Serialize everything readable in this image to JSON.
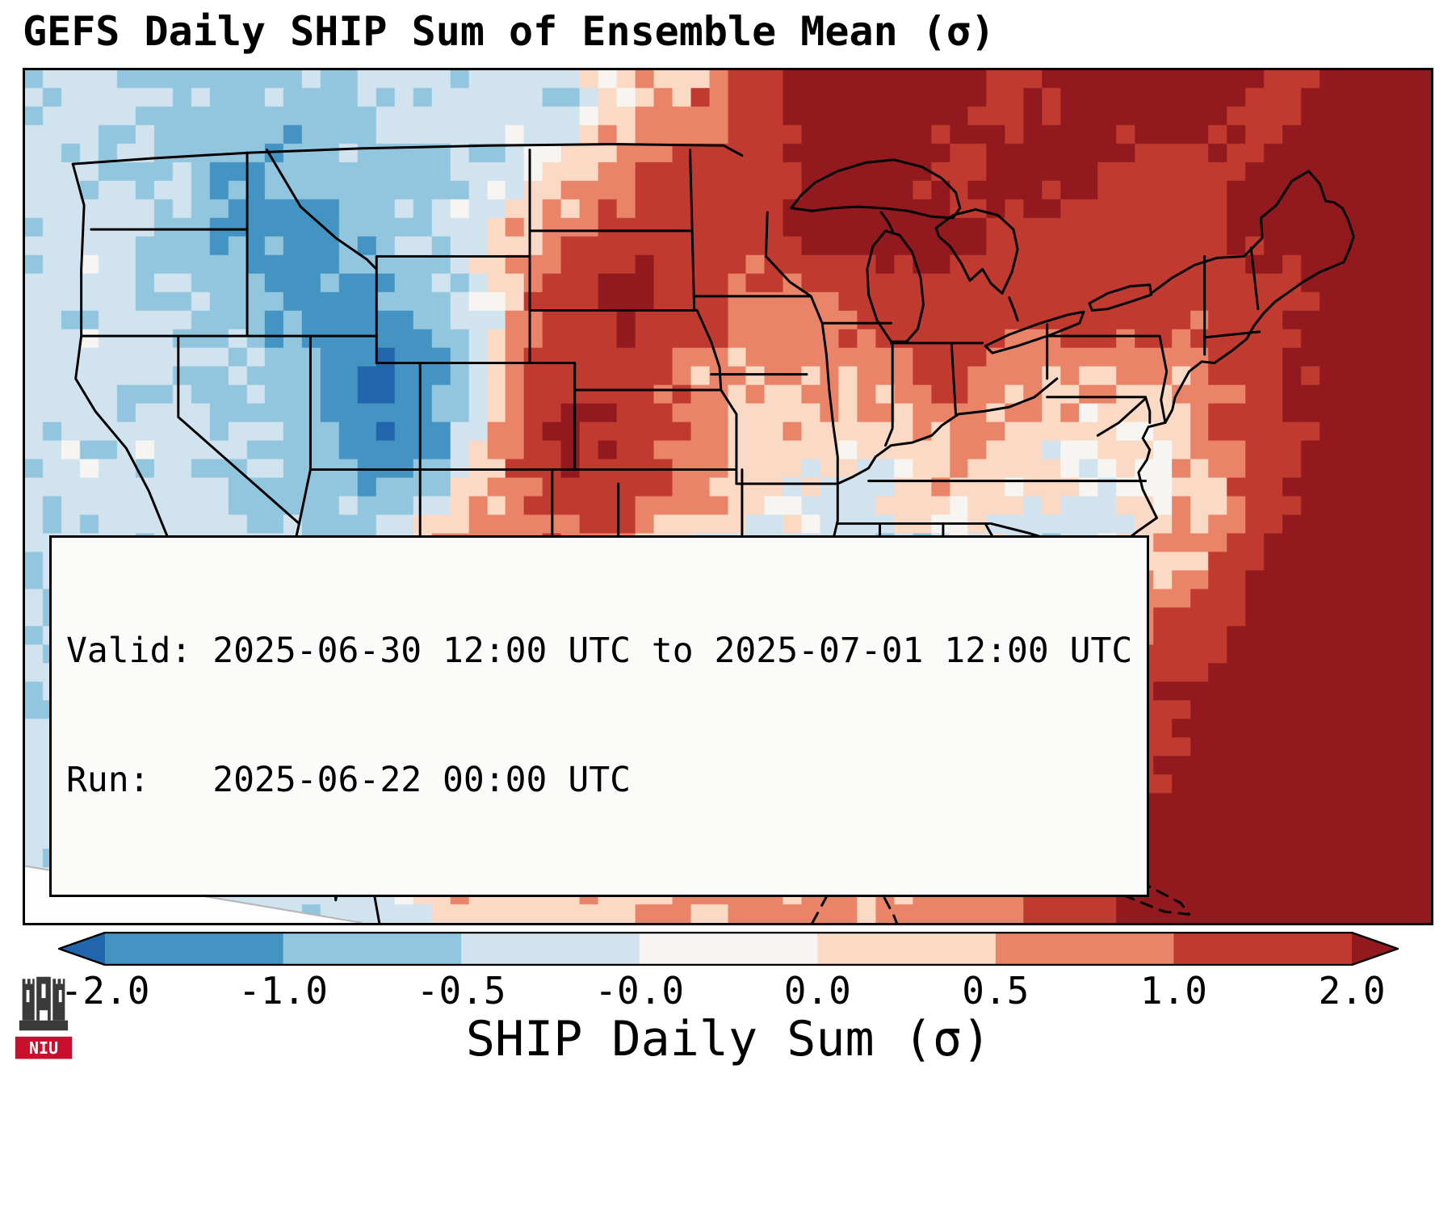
{
  "title": "GEFS Daily SHIP Sum of Ensemble Mean (σ)",
  "info_box": {
    "line1": "Valid: 2025-06-30 12:00 UTC to 2025-07-01 12:00 UTC",
    "line2": "Run:   2025-06-22 00:00 UTC"
  },
  "colorbar": {
    "label": "SHIP Daily Sum (σ)",
    "tick_labels": [
      "-2.0",
      "-1.0",
      "-0.5",
      "-0.0",
      "0.0",
      "0.5",
      "1.0",
      "2.0"
    ]
  },
  "logo": {
    "text": "NIU",
    "accent": "#c8102e"
  },
  "chart_data": {
    "type": "heatmap",
    "title": "GEFS Daily SHIP Sum of Ensemble Mean (σ)",
    "colorbar_label": "SHIP Daily Sum (σ)",
    "units": "sigma",
    "levels": [
      -2.0,
      -1.0,
      -0.5,
      -0.0,
      0.0,
      0.5,
      1.0,
      2.0
    ],
    "colors": [
      "#2166ac",
      "#4393c3",
      "#92c5de",
      "#d2e3f0",
      "#f7f5f2",
      "#fbdac5",
      "#e98468",
      "#c13a30",
      "#921a1e"
    ],
    "grid_rows": 13,
    "grid_cols": 22,
    "grid": [
      [
        -0.3,
        -0.5,
        -0.7,
        -0.7,
        -0.7,
        -0.5,
        -0.3,
        -0.3,
        -0.3,
        0.3,
        0.7,
        1.5,
        2.5,
        2.5,
        2.5,
        1.5,
        2.5,
        2.5,
        2.5,
        1.5,
        2.5,
        2.5
      ],
      [
        -0.3,
        -0.5,
        -0.7,
        -1.2,
        -0.7,
        -0.7,
        -0.5,
        -0.3,
        0.3,
        0.7,
        1.5,
        1.5,
        2.5,
        2.5,
        1.5,
        2.5,
        2.5,
        1.5,
        1.5,
        2.5,
        2.5,
        2.5
      ],
      [
        -0.3,
        -0.3,
        -0.7,
        -1.2,
        -1.2,
        -0.7,
        -0.3,
        0.3,
        0.7,
        1.5,
        1.5,
        1.5,
        2.5,
        2.5,
        2.5,
        1.5,
        1.5,
        1.5,
        1.5,
        2.5,
        2.5,
        2.5
      ],
      [
        -0.3,
        -0.3,
        -0.5,
        -0.7,
        -1.2,
        -1.2,
        -0.7,
        0.3,
        1.5,
        2.5,
        1.5,
        0.7,
        0.7,
        1.5,
        1.5,
        1.5,
        1.5,
        1.5,
        1.5,
        1.5,
        2.5,
        2.5
      ],
      [
        -0.3,
        -0.3,
        -0.5,
        -0.7,
        -0.7,
        -2.2,
        -1.2,
        0.3,
        1.5,
        1.5,
        0.7,
        0.7,
        0.7,
        0.7,
        1.5,
        0.7,
        0.7,
        0.7,
        0.7,
        1.5,
        2.5,
        2.5
      ],
      [
        -0.3,
        -0.3,
        -0.3,
        -0.5,
        -0.7,
        -2.2,
        -1.2,
        0.7,
        2.5,
        1.5,
        0.7,
        0.3,
        0.3,
        0.3,
        0.7,
        0.3,
        0.1,
        0.1,
        0.7,
        1.5,
        2.5,
        2.5
      ],
      [
        -0.3,
        -0.3,
        -0.3,
        -0.5,
        -0.7,
        -0.7,
        -0.3,
        0.7,
        1.5,
        1.5,
        0.7,
        0.3,
        -0.3,
        0.1,
        0.3,
        0.1,
        -0.3,
        0.1,
        0.3,
        1.5,
        2.5,
        2.5
      ],
      [
        -0.3,
        -0.3,
        -0.3,
        -0.3,
        -0.5,
        -0.3,
        0.7,
        0.7,
        0.7,
        0.3,
        -0.3,
        -0.3,
        -0.3,
        -0.7,
        -0.3,
        -0.3,
        -0.3,
        0.3,
        0.7,
        2.5,
        2.5,
        2.5
      ],
      [
        -0.3,
        -0.3,
        -0.3,
        -0.3,
        -0.3,
        0.7,
        1.5,
        0.7,
        0.3,
        -0.3,
        -0.7,
        -0.3,
        0.3,
        0.7,
        0.7,
        0.3,
        0.3,
        0.7,
        1.5,
        2.5,
        2.5,
        2.5
      ],
      [
        -0.3,
        -0.3,
        -0.3,
        -0.3,
        -0.3,
        0.7,
        2.5,
        0.7,
        -0.3,
        -0.3,
        0.3,
        0.7,
        1.5,
        1.5,
        1.5,
        0.7,
        0.7,
        1.5,
        2.5,
        2.5,
        2.5,
        2.5
      ],
      [
        -0.3,
        -0.3,
        -0.3,
        -0.3,
        -0.3,
        0.3,
        1.5,
        0.7,
        -0.3,
        0.3,
        0.7,
        1.5,
        1.5,
        1.5,
        1.5,
        1.5,
        1.5,
        1.5,
        2.5,
        2.5,
        2.5,
        2.5
      ],
      [
        -0.3,
        -0.3,
        -0.3,
        -0.3,
        -0.3,
        0.3,
        0.7,
        0.3,
        -0.3,
        0.3,
        0.7,
        1.5,
        1.5,
        1.5,
        0.7,
        0.7,
        1.5,
        2.5,
        2.5,
        2.5,
        2.5,
        2.5
      ],
      [
        -0.3,
        -0.3,
        -0.3,
        -0.3,
        -0.3,
        -0.3,
        0.3,
        0.3,
        0.3,
        0.3,
        0.7,
        0.7,
        0.7,
        0.7,
        0.7,
        0.7,
        1.5,
        2.5,
        2.5,
        2.5,
        2.5,
        2.5
      ]
    ]
  }
}
